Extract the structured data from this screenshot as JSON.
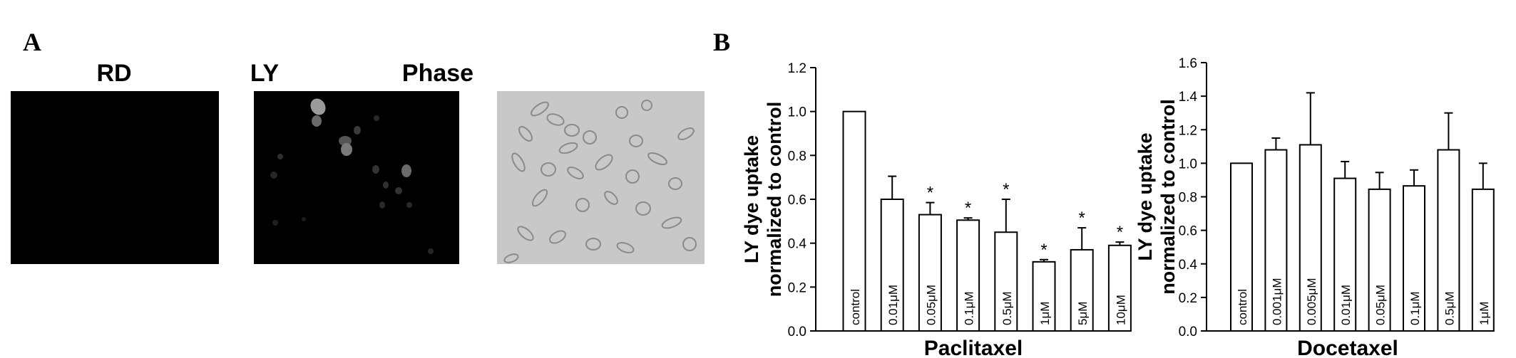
{
  "panels": {
    "a": {
      "letter": "A",
      "images": [
        {
          "title": "RD",
          "icon": "fluorescence-image-dark"
        },
        {
          "title": "LY",
          "icon": "fluorescence-image-cells"
        },
        {
          "title": "Phase",
          "icon": "phase-contrast-image-cells"
        }
      ]
    },
    "b": {
      "letter": "B"
    }
  },
  "chart_data": [
    {
      "type": "bar",
      "title": "",
      "xlabel": "Paclitaxel",
      "ylabel": [
        "LY dye uptake",
        "normalized to control"
      ],
      "ylim": [
        0,
        1.2
      ],
      "yticks": [
        "0.0",
        "0.2",
        "0.4",
        "0.6",
        "0.8",
        "1.0",
        "1.2"
      ],
      "categories": [
        "control",
        "0.01μM",
        "0.05μM",
        "0.1μM",
        "0.5μM",
        "1μM",
        "5μM",
        "10μM"
      ],
      "values": [
        1.0,
        0.6,
        0.53,
        0.505,
        0.45,
        0.315,
        0.37,
        0.39
      ],
      "errors": [
        0,
        0.105,
        0.055,
        0.01,
        0.15,
        0.01,
        0.1,
        0.015
      ],
      "significance": [
        "",
        "",
        "*",
        "*",
        "*",
        "*",
        "*",
        "*"
      ],
      "bar_color": "#ffffff",
      "grid": false
    },
    {
      "type": "bar",
      "title": "",
      "xlabel": "Docetaxel",
      "ylabel": [
        "LY dye uptake",
        "normalized to control"
      ],
      "ylim": [
        0,
        1.6
      ],
      "yticks": [
        "0.0",
        "0.2",
        "0.4",
        "0.6",
        "0.8",
        "1.0",
        "1.2",
        "1.4",
        "1.6"
      ],
      "categories": [
        "control",
        "0.001μM",
        "0.005μM",
        "0.01μM",
        "0.05μM",
        "0.1μM",
        "0.5μM",
        "1μM"
      ],
      "values": [
        1.0,
        1.08,
        1.11,
        0.91,
        0.845,
        0.865,
        1.08,
        0.845
      ],
      "errors": [
        0,
        0.07,
        0.31,
        0.1,
        0.1,
        0.095,
        0.22,
        0.155
      ],
      "significance": [
        "",
        "",
        "",
        "",
        "",
        "",
        "",
        ""
      ],
      "bar_color": "#ffffff",
      "grid": false
    }
  ]
}
